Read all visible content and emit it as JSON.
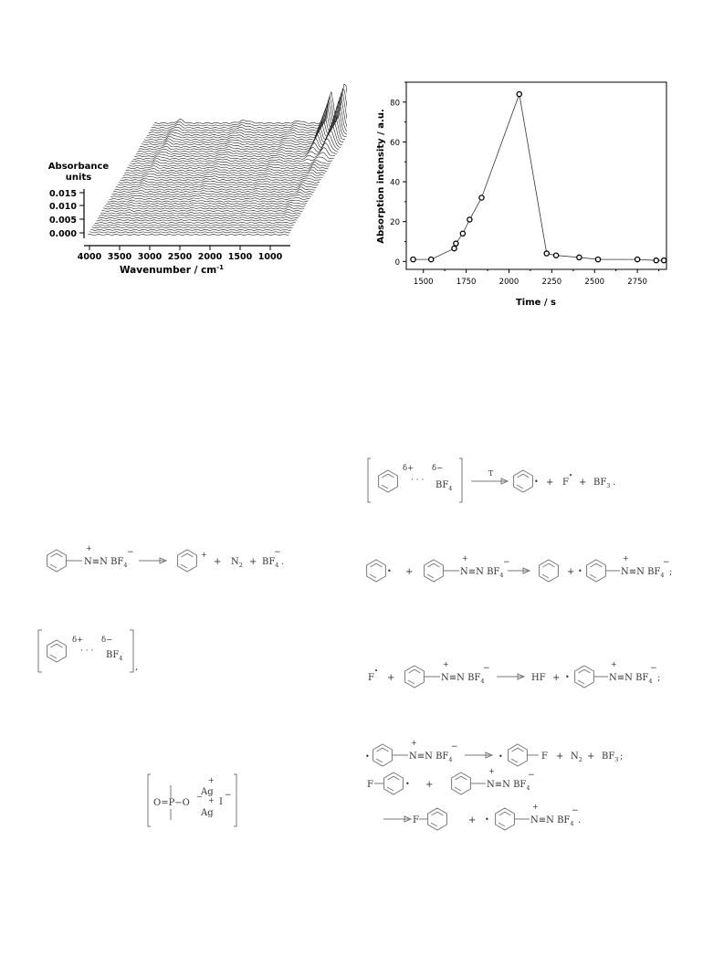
{
  "ir_spectrum": {
    "y_title_line1": "Absorbance",
    "y_title_line2": "units",
    "y_ticks": [
      "0.015",
      "0.010",
      "0.005",
      "0.000"
    ],
    "x_ticks": [
      "4000",
      "3500",
      "3000",
      "2500",
      "2000",
      "1500",
      "1000"
    ],
    "x_title": "Wavenumber / cm",
    "x_title_sup": "-1"
  },
  "chart_data": {
    "type": "line",
    "title": "",
    "xlabel": "Time / s",
    "ylabel": "Absorption intensity / a.u.",
    "xlim": [
      1400,
      2920
    ],
    "ylim": [
      -4,
      90
    ],
    "x_ticks": [
      "1500",
      "1750",
      "2000",
      "2250",
      "2500",
      "2750"
    ],
    "y_ticks": [
      "0",
      "20",
      "40",
      "60",
      "80"
    ],
    "markers": "open-circle",
    "series": [
      {
        "x": [
          1440,
          1545,
          1680,
          1690,
          1730,
          1770,
          1840,
          2060,
          2220,
          2275,
          2410,
          2520,
          2750,
          2860,
          2905
        ],
        "y": [
          1,
          1,
          6.5,
          9,
          14,
          21,
          32,
          84,
          4,
          3,
          2,
          1,
          1,
          0.5,
          0.5
        ]
      }
    ]
  },
  "chem": {
    "n_plus": "+",
    "n_triple": "N≡N",
    "bf4": "BF",
    "sub4": "4",
    "sub3": "3",
    "minus": "−",
    "plus": "+",
    "dot": "•",
    "delta_plus": "δ+",
    "delta_minus": "δ−",
    "dots": "· · ·",
    "n2": "N",
    "sub2": "2",
    "bf3": "BF",
    "hf": "HF",
    "f": "F",
    "t_label": "T",
    "ag": "Ag",
    "i": "I",
    "o_eq_p": "O=P−O",
    "semicolon": ";",
    "period": ".",
    "comma": ","
  }
}
